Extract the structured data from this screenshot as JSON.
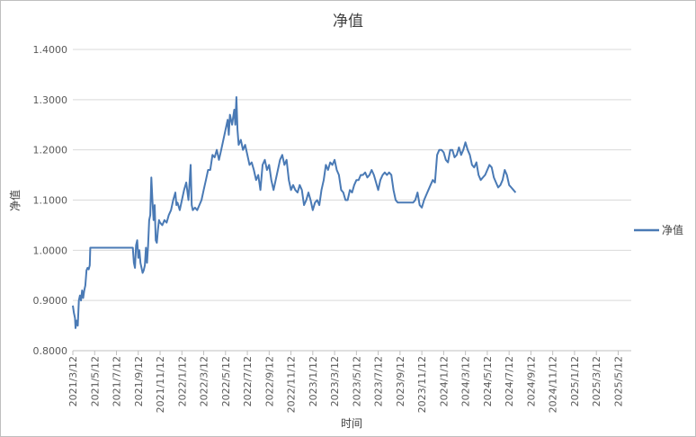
{
  "chart_data": {
    "type": "line",
    "title": "净值",
    "xlabel": "时间",
    "ylabel": "净值",
    "ylim": [
      0.8,
      1.4
    ],
    "yticks": [
      "0.8000",
      "0.9000",
      "1.0000",
      "1.1000",
      "1.2000",
      "1.3000",
      "1.4000"
    ],
    "xtick_labels": [
      "2021/3/12",
      "2021/5/12",
      "2021/7/12",
      "2021/9/12",
      "2021/11/12",
      "2022/1/12",
      "2022/3/12",
      "2022/5/12",
      "2022/7/12",
      "2022/9/12",
      "2022/11/12",
      "2023/1/12",
      "2023/3/12",
      "2023/5/12",
      "2023/7/12",
      "2023/9/12",
      "2023/11/12",
      "2024/1/12",
      "2024/3/12",
      "2024/5/12",
      "2024/7/12",
      "2024/9/12",
      "2024/11/12",
      "2025/1/12",
      "2025/3/12",
      "2025/5/12"
    ],
    "grid": true,
    "legend_position": "right",
    "series": [
      {
        "name": "净值",
        "color": "#4a7ab5",
        "x_unit": "months since 2021/3/12",
        "points": [
          [
            0.0,
            0.89
          ],
          [
            0.1,
            0.875
          ],
          [
            0.2,
            0.865
          ],
          [
            0.25,
            0.845
          ],
          [
            0.35,
            0.86
          ],
          [
            0.45,
            0.85
          ],
          [
            0.55,
            0.9
          ],
          [
            0.65,
            0.91
          ],
          [
            0.75,
            0.9
          ],
          [
            0.85,
            0.92
          ],
          [
            0.95,
            0.905
          ],
          [
            1.05,
            0.92
          ],
          [
            1.15,
            0.93
          ],
          [
            1.25,
            0.96
          ],
          [
            1.35,
            0.965
          ],
          [
            1.45,
            0.962
          ],
          [
            1.55,
            0.97
          ],
          [
            1.6,
            1.005
          ],
          [
            2.0,
            1.005
          ],
          [
            3.0,
            1.005
          ],
          [
            4.0,
            1.005
          ],
          [
            5.0,
            1.005
          ],
          [
            5.5,
            1.005
          ],
          [
            5.6,
            0.975
          ],
          [
            5.7,
            0.965
          ],
          [
            5.8,
            1.01
          ],
          [
            5.9,
            1.02
          ],
          [
            6.0,
            0.985
          ],
          [
            6.1,
            1.0
          ],
          [
            6.2,
            0.975
          ],
          [
            6.3,
            0.965
          ],
          [
            6.4,
            0.955
          ],
          [
            6.5,
            0.96
          ],
          [
            6.6,
            0.97
          ],
          [
            6.7,
            1.005
          ],
          [
            6.8,
            0.975
          ],
          [
            6.9,
            1.01
          ],
          [
            7.0,
            1.06
          ],
          [
            7.1,
            1.07
          ],
          [
            7.2,
            1.145
          ],
          [
            7.3,
            1.1
          ],
          [
            7.4,
            1.06
          ],
          [
            7.5,
            1.09
          ],
          [
            7.6,
            1.02
          ],
          [
            7.7,
            1.015
          ],
          [
            7.8,
            1.04
          ],
          [
            7.9,
            1.06
          ],
          [
            8.0,
            1.055
          ],
          [
            8.2,
            1.05
          ],
          [
            8.4,
            1.06
          ],
          [
            8.6,
            1.055
          ],
          [
            8.8,
            1.07
          ],
          [
            9.0,
            1.08
          ],
          [
            9.2,
            1.1
          ],
          [
            9.4,
            1.115
          ],
          [
            9.5,
            1.09
          ],
          [
            9.6,
            1.095
          ],
          [
            9.8,
            1.08
          ],
          [
            10.0,
            1.1
          ],
          [
            10.2,
            1.12
          ],
          [
            10.4,
            1.135
          ],
          [
            10.6,
            1.1
          ],
          [
            10.8,
            1.17
          ],
          [
            10.9,
            1.09
          ],
          [
            11.0,
            1.08
          ],
          [
            11.2,
            1.085
          ],
          [
            11.4,
            1.08
          ],
          [
            11.6,
            1.09
          ],
          [
            11.8,
            1.1
          ],
          [
            12.0,
            1.12
          ],
          [
            12.2,
            1.14
          ],
          [
            12.4,
            1.16
          ],
          [
            12.6,
            1.16
          ],
          [
            12.8,
            1.19
          ],
          [
            13.0,
            1.185
          ],
          [
            13.2,
            1.2
          ],
          [
            13.4,
            1.18
          ],
          [
            13.6,
            1.2
          ],
          [
            13.8,
            1.22
          ],
          [
            14.0,
            1.24
          ],
          [
            14.2,
            1.26
          ],
          [
            14.3,
            1.23
          ],
          [
            14.4,
            1.27
          ],
          [
            14.6,
            1.25
          ],
          [
            14.8,
            1.28
          ],
          [
            14.9,
            1.25
          ],
          [
            15.0,
            1.305
          ],
          [
            15.1,
            1.24
          ],
          [
            15.2,
            1.21
          ],
          [
            15.4,
            1.22
          ],
          [
            15.6,
            1.2
          ],
          [
            15.8,
            1.21
          ],
          [
            16.0,
            1.19
          ],
          [
            16.2,
            1.17
          ],
          [
            16.4,
            1.175
          ],
          [
            16.6,
            1.16
          ],
          [
            16.8,
            1.14
          ],
          [
            17.0,
            1.15
          ],
          [
            17.2,
            1.12
          ],
          [
            17.4,
            1.17
          ],
          [
            17.6,
            1.18
          ],
          [
            17.8,
            1.16
          ],
          [
            18.0,
            1.17
          ],
          [
            18.2,
            1.14
          ],
          [
            18.4,
            1.12
          ],
          [
            18.6,
            1.14
          ],
          [
            18.8,
            1.16
          ],
          [
            19.0,
            1.18
          ],
          [
            19.2,
            1.19
          ],
          [
            19.4,
            1.17
          ],
          [
            19.6,
            1.18
          ],
          [
            19.8,
            1.14
          ],
          [
            20.0,
            1.12
          ],
          [
            20.2,
            1.13
          ],
          [
            20.4,
            1.12
          ],
          [
            20.6,
            1.115
          ],
          [
            20.8,
            1.13
          ],
          [
            21.0,
            1.12
          ],
          [
            21.2,
            1.09
          ],
          [
            21.4,
            1.1
          ],
          [
            21.6,
            1.115
          ],
          [
            21.8,
            1.1
          ],
          [
            22.0,
            1.08
          ],
          [
            22.2,
            1.095
          ],
          [
            22.4,
            1.1
          ],
          [
            22.6,
            1.09
          ],
          [
            22.8,
            1.12
          ],
          [
            23.0,
            1.14
          ],
          [
            23.2,
            1.17
          ],
          [
            23.4,
            1.16
          ],
          [
            23.6,
            1.175
          ],
          [
            23.8,
            1.17
          ],
          [
            24.0,
            1.18
          ],
          [
            24.2,
            1.16
          ],
          [
            24.4,
            1.15
          ],
          [
            24.6,
            1.12
          ],
          [
            24.8,
            1.115
          ],
          [
            25.0,
            1.1
          ],
          [
            25.2,
            1.1
          ],
          [
            25.4,
            1.12
          ],
          [
            25.6,
            1.115
          ],
          [
            25.8,
            1.13
          ],
          [
            26.0,
            1.14
          ],
          [
            26.2,
            1.14
          ],
          [
            26.4,
            1.15
          ],
          [
            26.6,
            1.15
          ],
          [
            26.8,
            1.155
          ],
          [
            27.0,
            1.145
          ],
          [
            27.2,
            1.15
          ],
          [
            27.4,
            1.16
          ],
          [
            27.6,
            1.15
          ],
          [
            27.8,
            1.135
          ],
          [
            28.0,
            1.12
          ],
          [
            28.2,
            1.14
          ],
          [
            28.4,
            1.15
          ],
          [
            28.6,
            1.155
          ],
          [
            28.8,
            1.15
          ],
          [
            29.0,
            1.155
          ],
          [
            29.2,
            1.15
          ],
          [
            29.4,
            1.12
          ],
          [
            29.6,
            1.1
          ],
          [
            29.8,
            1.095
          ],
          [
            30.0,
            1.095
          ],
          [
            30.4,
            1.095
          ],
          [
            30.8,
            1.095
          ],
          [
            31.2,
            1.095
          ],
          [
            31.4,
            1.1
          ],
          [
            31.6,
            1.115
          ],
          [
            31.8,
            1.09
          ],
          [
            32.0,
            1.085
          ],
          [
            32.2,
            1.1
          ],
          [
            32.4,
            1.11
          ],
          [
            32.6,
            1.12
          ],
          [
            32.8,
            1.13
          ],
          [
            33.0,
            1.14
          ],
          [
            33.2,
            1.135
          ],
          [
            33.4,
            1.19
          ],
          [
            33.6,
            1.2
          ],
          [
            33.8,
            1.2
          ],
          [
            34.0,
            1.195
          ],
          [
            34.2,
            1.18
          ],
          [
            34.4,
            1.175
          ],
          [
            34.6,
            1.2
          ],
          [
            34.8,
            1.2
          ],
          [
            35.0,
            1.185
          ],
          [
            35.2,
            1.19
          ],
          [
            35.4,
            1.205
          ],
          [
            35.6,
            1.19
          ],
          [
            35.8,
            1.2
          ],
          [
            36.0,
            1.215
          ],
          [
            36.2,
            1.2
          ],
          [
            36.4,
            1.19
          ],
          [
            36.6,
            1.17
          ],
          [
            36.8,
            1.165
          ],
          [
            37.0,
            1.175
          ],
          [
            37.2,
            1.15
          ],
          [
            37.4,
            1.14
          ],
          [
            37.6,
            1.145
          ],
          [
            37.8,
            1.15
          ],
          [
            38.0,
            1.16
          ],
          [
            38.2,
            1.17
          ],
          [
            38.4,
            1.165
          ],
          [
            38.6,
            1.145
          ],
          [
            38.8,
            1.135
          ],
          [
            39.0,
            1.125
          ],
          [
            39.2,
            1.13
          ],
          [
            39.4,
            1.14
          ],
          [
            39.6,
            1.16
          ],
          [
            39.8,
            1.15
          ],
          [
            40.0,
            1.13
          ],
          [
            40.2,
            1.125
          ],
          [
            40.4,
            1.12
          ],
          [
            40.6,
            1.115
          ]
        ]
      }
    ]
  }
}
